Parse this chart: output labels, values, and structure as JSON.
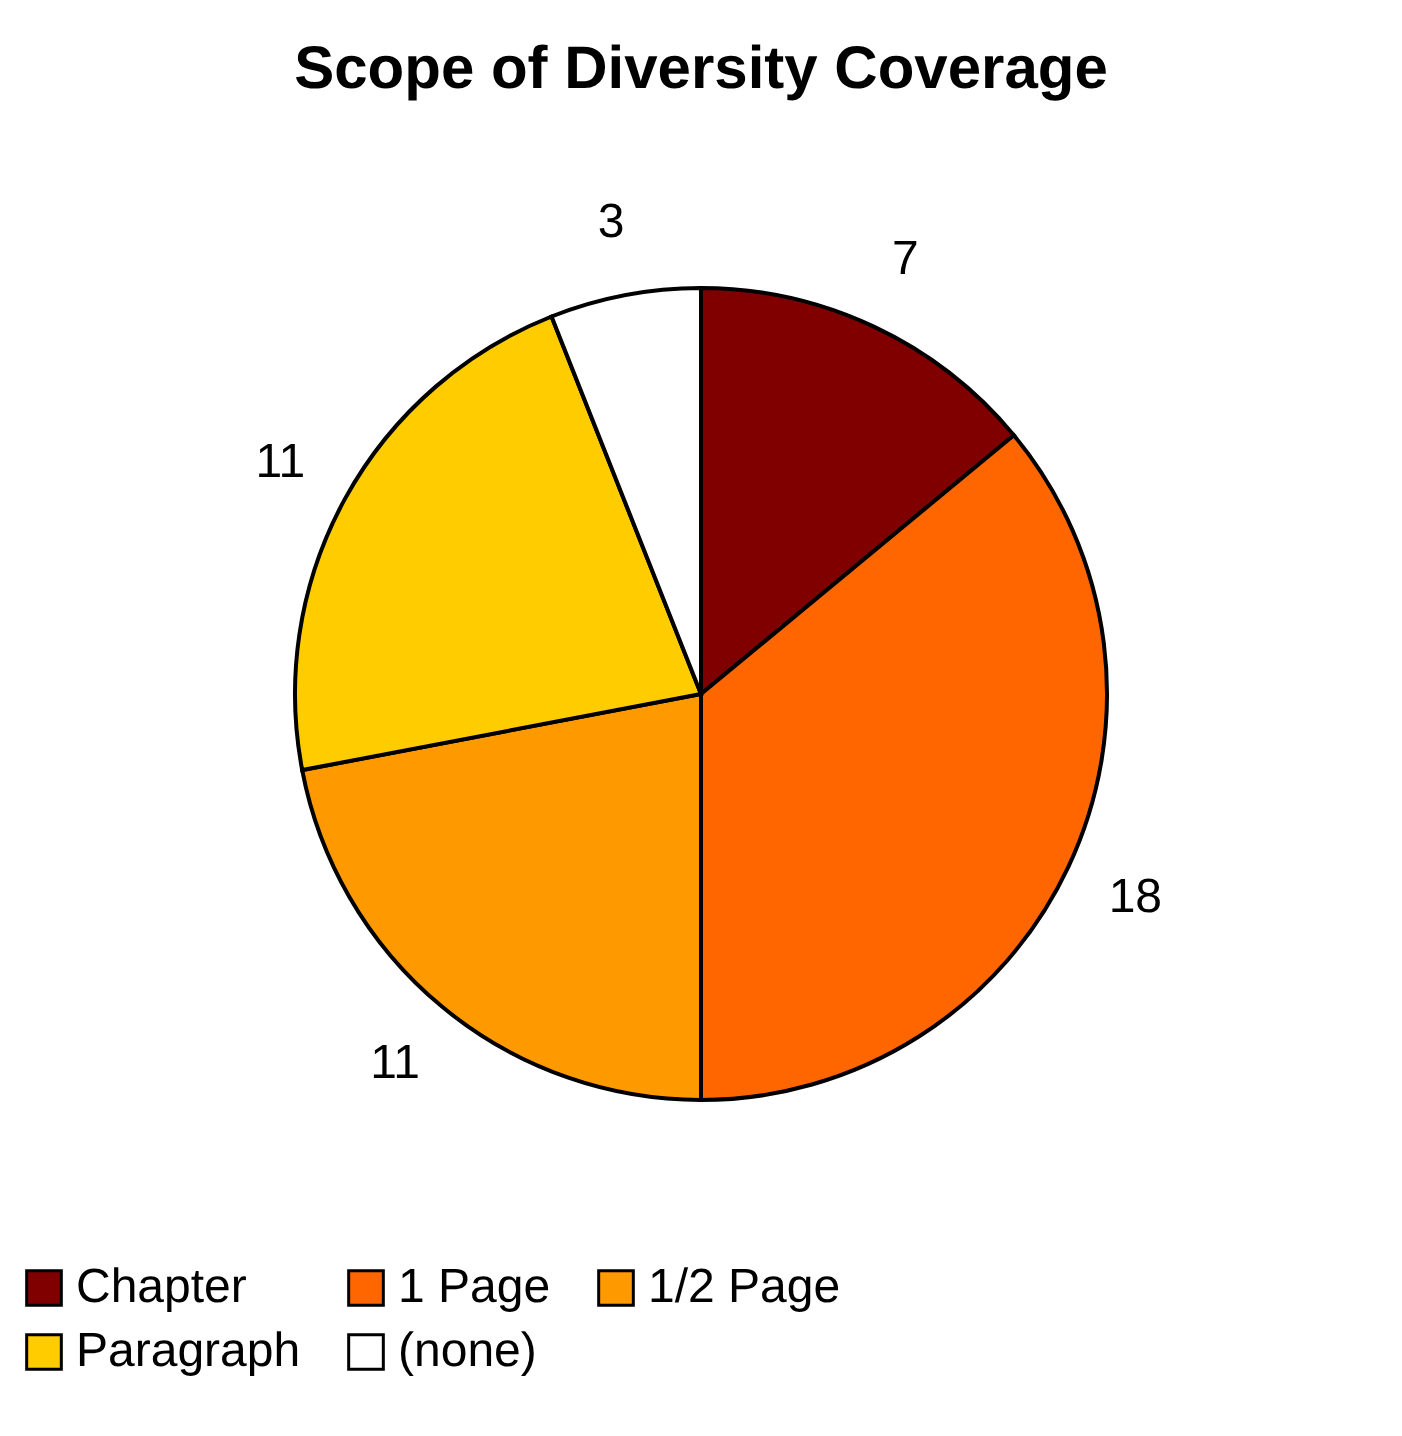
{
  "chart_data": {
    "type": "pie",
    "title": "Scope of Diversity Coverage",
    "categories": [
      "Chapter",
      "1 Page",
      "1/2 Page",
      "Paragraph",
      "(none)"
    ],
    "values": [
      7,
      18,
      11,
      11,
      3
    ],
    "colors": [
      "#800000",
      "#ff6600",
      "#ff9900",
      "#ffcc00",
      "#ffffff"
    ],
    "data_labels": true,
    "legend": "bottom"
  }
}
